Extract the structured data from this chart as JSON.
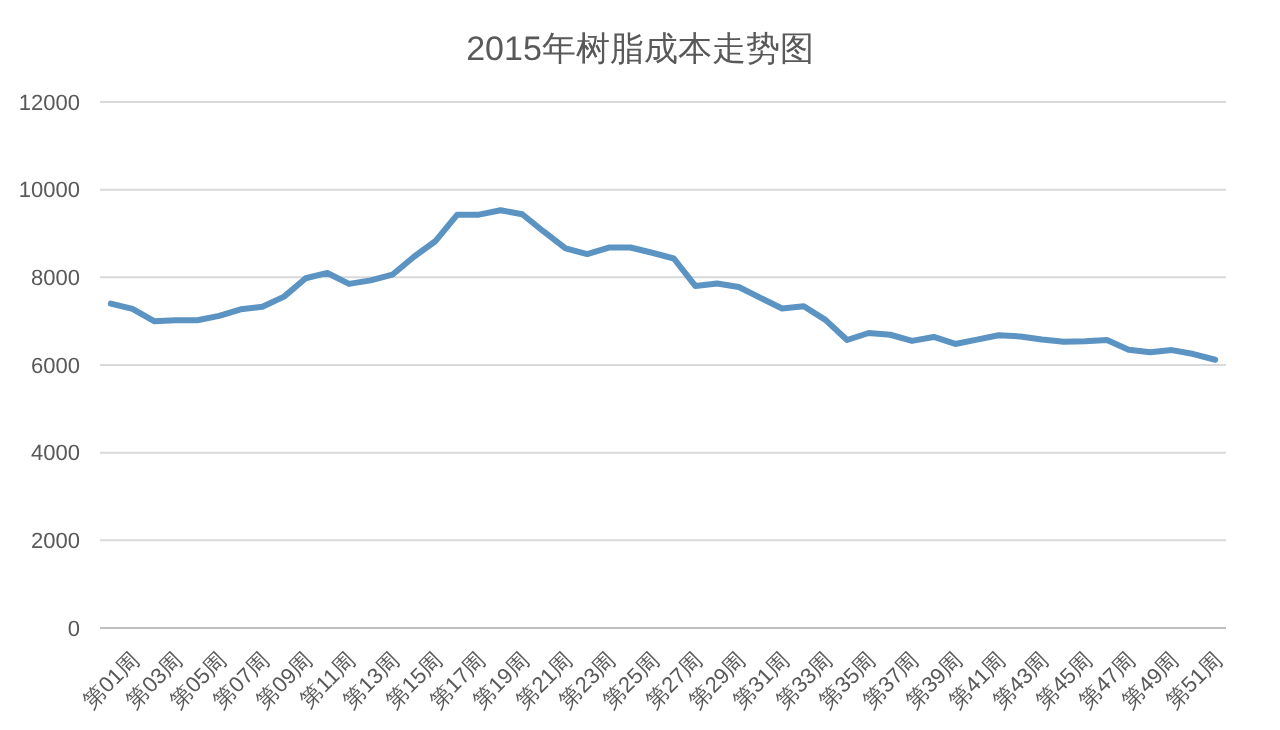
{
  "chart_data": {
    "type": "line",
    "title": "2015年树脂成本走势图",
    "categories": [
      "第01周",
      null,
      "第03周",
      null,
      "第05周",
      null,
      "第07周",
      null,
      "第09周",
      null,
      "第11周",
      null,
      "第13周",
      null,
      "第15周",
      null,
      "第17周",
      null,
      "第19周",
      null,
      "第21周",
      null,
      "第23周",
      null,
      "第25周",
      null,
      "第27周",
      null,
      "第29周",
      null,
      "第31周",
      null,
      "第33周",
      null,
      "第35周",
      null,
      "第37周",
      null,
      "第39周",
      null,
      "第41周",
      null,
      "第43周",
      null,
      "第45周",
      null,
      "第47周",
      null,
      "第49周",
      null,
      "第51周",
      null
    ],
    "series": [
      {
        "color": "#5b93c2",
        "values": [
          7400,
          7280,
          7000,
          7020,
          7020,
          7120,
          7270,
          7330,
          7560,
          7980,
          8100,
          7850,
          7930,
          8060,
          8470,
          8830,
          9430,
          9430,
          9530,
          9440,
          9040,
          8660,
          8530,
          8680,
          8680,
          8560,
          8430,
          7800,
          7860,
          7780,
          7530,
          7290,
          7340,
          7030,
          6570,
          6730,
          6690,
          6550,
          6640,
          6480,
          6580,
          6680,
          6650,
          6580,
          6530,
          6540,
          6570,
          6350,
          6290,
          6340,
          6250,
          6120
        ]
      }
    ],
    "ylim": [
      0,
      12000
    ],
    "yticks": [
      0,
      2000,
      4000,
      6000,
      8000,
      10000,
      12000
    ],
    "grid": "y",
    "marker": "none",
    "line_style": "solid"
  }
}
